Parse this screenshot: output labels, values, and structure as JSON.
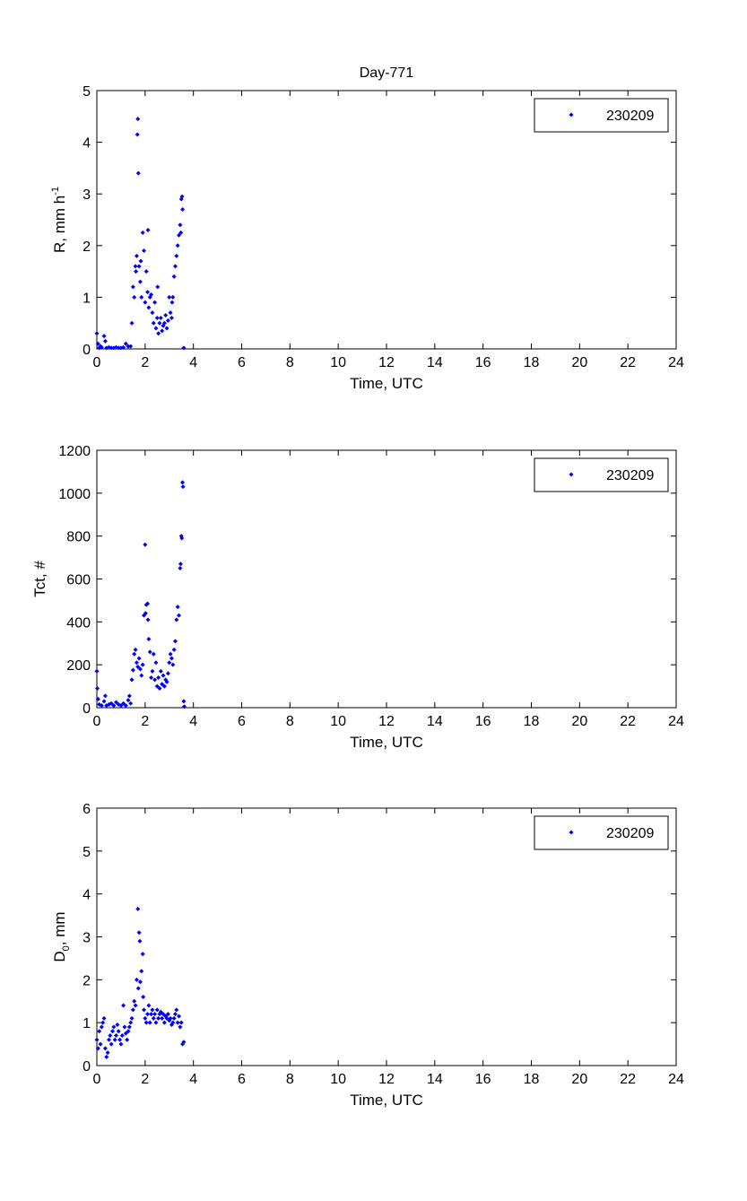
{
  "chart_data": [
    {
      "type": "scatter",
      "title": "Day-771",
      "xlabel": "Time, UTC",
      "ylabel": "R, mm h",
      "ylabel_sup": "-1",
      "xlim": [
        0,
        24
      ],
      "ylim": [
        0,
        5
      ],
      "xticks": [
        0,
        2,
        4,
        6,
        8,
        10,
        12,
        14,
        16,
        18,
        20,
        22,
        24
      ],
      "yticks": [
        0,
        1,
        2,
        3,
        4,
        5
      ],
      "legend": "230209",
      "legend_position": "top-right",
      "color": "#0000ff",
      "series": [
        {
          "name": "230209",
          "points": [
            [
              0,
              0.3
            ],
            [
              0.05,
              0.1
            ],
            [
              0.1,
              0.02
            ],
            [
              0.15,
              0.05
            ],
            [
              0.2,
              0.03
            ],
            [
              0.3,
              0.25
            ],
            [
              0.35,
              0.15
            ],
            [
              0.4,
              0.02
            ],
            [
              0.5,
              0.03
            ],
            [
              0.6,
              0.02
            ],
            [
              0.7,
              0.02
            ],
            [
              0.8,
              0.03
            ],
            [
              0.9,
              0.02
            ],
            [
              1.0,
              0.02
            ],
            [
              1.1,
              0.03
            ],
            [
              1.2,
              0.1
            ],
            [
              1.3,
              0.05
            ],
            [
              1.4,
              0.05
            ],
            [
              1.45,
              0.5
            ],
            [
              1.5,
              1.2
            ],
            [
              1.55,
              1.0
            ],
            [
              1.6,
              1.6
            ],
            [
              1.62,
              1.5
            ],
            [
              1.65,
              1.8
            ],
            [
              1.68,
              4.15
            ],
            [
              1.7,
              4.45
            ],
            [
              1.72,
              3.4
            ],
            [
              1.75,
              1.6
            ],
            [
              1.8,
              1.3
            ],
            [
              1.82,
              1.7
            ],
            [
              1.85,
              1.0
            ],
            [
              1.9,
              2.25
            ],
            [
              1.95,
              1.9
            ],
            [
              2.0,
              0.9
            ],
            [
              2.05,
              1.5
            ],
            [
              2.1,
              1.1
            ],
            [
              2.12,
              2.3
            ],
            [
              2.15,
              0.8
            ],
            [
              2.2,
              1.0
            ],
            [
              2.25,
              1.05
            ],
            [
              2.3,
              0.7
            ],
            [
              2.35,
              0.5
            ],
            [
              2.4,
              0.9
            ],
            [
              2.45,
              0.4
            ],
            [
              2.5,
              0.6
            ],
            [
              2.52,
              1.2
            ],
            [
              2.55,
              0.3
            ],
            [
              2.6,
              0.5
            ],
            [
              2.65,
              0.6
            ],
            [
              2.7,
              0.35
            ],
            [
              2.75,
              0.45
            ],
            [
              2.8,
              0.5
            ],
            [
              2.85,
              0.65
            ],
            [
              2.9,
              0.4
            ],
            [
              2.95,
              0.55
            ],
            [
              3.0,
              1.0
            ],
            [
              3.05,
              0.7
            ],
            [
              3.1,
              0.6
            ],
            [
              3.12,
              0.9
            ],
            [
              3.15,
              1.0
            ],
            [
              3.2,
              1.4
            ],
            [
              3.25,
              1.6
            ],
            [
              3.3,
              1.8
            ],
            [
              3.35,
              2.0
            ],
            [
              3.4,
              2.2
            ],
            [
              3.45,
              2.4
            ],
            [
              3.48,
              2.25
            ],
            [
              3.5,
              2.9
            ],
            [
              3.53,
              2.95
            ],
            [
              3.55,
              2.7
            ],
            [
              3.6,
              0.02
            ]
          ]
        }
      ]
    },
    {
      "type": "scatter",
      "title": "",
      "xlabel": "Time, UTC",
      "ylabel": "Tct, #",
      "xlim": [
        0,
        24
      ],
      "ylim": [
        0,
        1200
      ],
      "xticks": [
        0,
        2,
        4,
        6,
        8,
        10,
        12,
        14,
        16,
        18,
        20,
        22,
        24
      ],
      "yticks": [
        0,
        200,
        400,
        600,
        800,
        1000,
        1200
      ],
      "legend": "230209",
      "legend_position": "top-right",
      "color": "#0000ff",
      "series": [
        {
          "name": "230209",
          "points": [
            [
              0,
              170
            ],
            [
              0.02,
              90
            ],
            [
              0.05,
              40
            ],
            [
              0.1,
              15
            ],
            [
              0.2,
              10
            ],
            [
              0.3,
              30
            ],
            [
              0.35,
              55
            ],
            [
              0.4,
              10
            ],
            [
              0.5,
              15
            ],
            [
              0.6,
              20
            ],
            [
              0.7,
              10
            ],
            [
              0.8,
              25
            ],
            [
              0.9,
              15
            ],
            [
              1.0,
              10
            ],
            [
              1.1,
              20
            ],
            [
              1.2,
              10
            ],
            [
              1.3,
              35
            ],
            [
              1.35,
              55
            ],
            [
              1.4,
              20
            ],
            [
              1.45,
              130
            ],
            [
              1.5,
              175
            ],
            [
              1.55,
              250
            ],
            [
              1.6,
              270
            ],
            [
              1.65,
              210
            ],
            [
              1.7,
              190
            ],
            [
              1.75,
              230
            ],
            [
              1.8,
              180
            ],
            [
              1.85,
              150
            ],
            [
              1.9,
              200
            ],
            [
              1.95,
              430
            ],
            [
              2.0,
              760
            ],
            [
              2.02,
              440
            ],
            [
              2.05,
              480
            ],
            [
              2.1,
              485
            ],
            [
              2.12,
              410
            ],
            [
              2.15,
              320
            ],
            [
              2.2,
              260
            ],
            [
              2.25,
              140
            ],
            [
              2.3,
              170
            ],
            [
              2.35,
              250
            ],
            [
              2.4,
              130
            ],
            [
              2.45,
              210
            ],
            [
              2.5,
              100
            ],
            [
              2.55,
              140
            ],
            [
              2.6,
              90
            ],
            [
              2.65,
              170
            ],
            [
              2.7,
              110
            ],
            [
              2.75,
              150
            ],
            [
              2.8,
              100
            ],
            [
              2.85,
              130
            ],
            [
              2.9,
              120
            ],
            [
              2.95,
              160
            ],
            [
              3.0,
              210
            ],
            [
              3.05,
              250
            ],
            [
              3.1,
              230
            ],
            [
              3.15,
              200
            ],
            [
              3.2,
              270
            ],
            [
              3.25,
              310
            ],
            [
              3.3,
              410
            ],
            [
              3.35,
              470
            ],
            [
              3.4,
              430
            ],
            [
              3.45,
              650
            ],
            [
              3.47,
              670
            ],
            [
              3.5,
              800
            ],
            [
              3.52,
              790
            ],
            [
              3.55,
              1050
            ],
            [
              3.57,
              1030
            ],
            [
              3.6,
              30
            ],
            [
              3.62,
              5
            ]
          ]
        }
      ]
    },
    {
      "type": "scatter",
      "title": "",
      "xlabel": "Time, UTC",
      "ylabel": "D",
      "ylabel_sub": "0",
      "ylabel_suffix": ", mm",
      "xlim": [
        0,
        24
      ],
      "ylim": [
        0,
        6
      ],
      "xticks": [
        0,
        2,
        4,
        6,
        8,
        10,
        12,
        14,
        16,
        18,
        20,
        22,
        24
      ],
      "yticks": [
        0,
        1,
        2,
        3,
        4,
        5,
        6
      ],
      "legend": "230209",
      "legend_position": "top-right",
      "color": "#0000ff",
      "series": [
        {
          "name": "230209",
          "points": [
            [
              0,
              0.6
            ],
            [
              0.05,
              0.4
            ],
            [
              0.1,
              0.8
            ],
            [
              0.15,
              0.5
            ],
            [
              0.2,
              0.9
            ],
            [
              0.25,
              1.0
            ],
            [
              0.3,
              1.1
            ],
            [
              0.35,
              0.4
            ],
            [
              0.4,
              0.2
            ],
            [
              0.45,
              0.3
            ],
            [
              0.5,
              0.6
            ],
            [
              0.55,
              0.7
            ],
            [
              0.6,
              0.5
            ],
            [
              0.65,
              0.8
            ],
            [
              0.7,
              0.9
            ],
            [
              0.75,
              0.6
            ],
            [
              0.8,
              0.7
            ],
            [
              0.85,
              0.95
            ],
            [
              0.9,
              0.8
            ],
            [
              0.95,
              0.6
            ],
            [
              1.0,
              0.5
            ],
            [
              1.05,
              0.7
            ],
            [
              1.1,
              1.4
            ],
            [
              1.15,
              0.9
            ],
            [
              1.2,
              0.75
            ],
            [
              1.25,
              0.6
            ],
            [
              1.3,
              0.8
            ],
            [
              1.35,
              0.9
            ],
            [
              1.4,
              1.0
            ],
            [
              1.45,
              1.1
            ],
            [
              1.5,
              1.3
            ],
            [
              1.55,
              1.5
            ],
            [
              1.6,
              1.4
            ],
            [
              1.65,
              2.0
            ],
            [
              1.7,
              3.65
            ],
            [
              1.72,
              1.8
            ],
            [
              1.75,
              3.1
            ],
            [
              1.78,
              2.9
            ],
            [
              1.8,
              1.95
            ],
            [
              1.85,
              2.2
            ],
            [
              1.9,
              2.6
            ],
            [
              1.92,
              1.6
            ],
            [
              1.95,
              1.3
            ],
            [
              2.0,
              1.1
            ],
            [
              2.05,
              1.0
            ],
            [
              2.1,
              1.2
            ],
            [
              2.15,
              1.4
            ],
            [
              2.2,
              1.0
            ],
            [
              2.25,
              1.2
            ],
            [
              2.3,
              1.3
            ],
            [
              2.35,
              1.1
            ],
            [
              2.4,
              1.2
            ],
            [
              2.45,
              1.0
            ],
            [
              2.5,
              1.3
            ],
            [
              2.55,
              1.1
            ],
            [
              2.6,
              1.2
            ],
            [
              2.65,
              1.25
            ],
            [
              2.7,
              1.1
            ],
            [
              2.75,
              1.2
            ],
            [
              2.8,
              1.0
            ],
            [
              2.85,
              1.15
            ],
            [
              2.9,
              1.1
            ],
            [
              2.95,
              1.2
            ],
            [
              3.0,
              1.05
            ],
            [
              3.05,
              1.1
            ],
            [
              3.1,
              0.95
            ],
            [
              3.15,
              1.0
            ],
            [
              3.2,
              1.1
            ],
            [
              3.25,
              1.2
            ],
            [
              3.3,
              1.3
            ],
            [
              3.35,
              1.0
            ],
            [
              3.4,
              1.15
            ],
            [
              3.45,
              0.9
            ],
            [
              3.5,
              1.0
            ],
            [
              3.55,
              0.5
            ],
            [
              3.6,
              0.55
            ]
          ]
        }
      ]
    }
  ]
}
